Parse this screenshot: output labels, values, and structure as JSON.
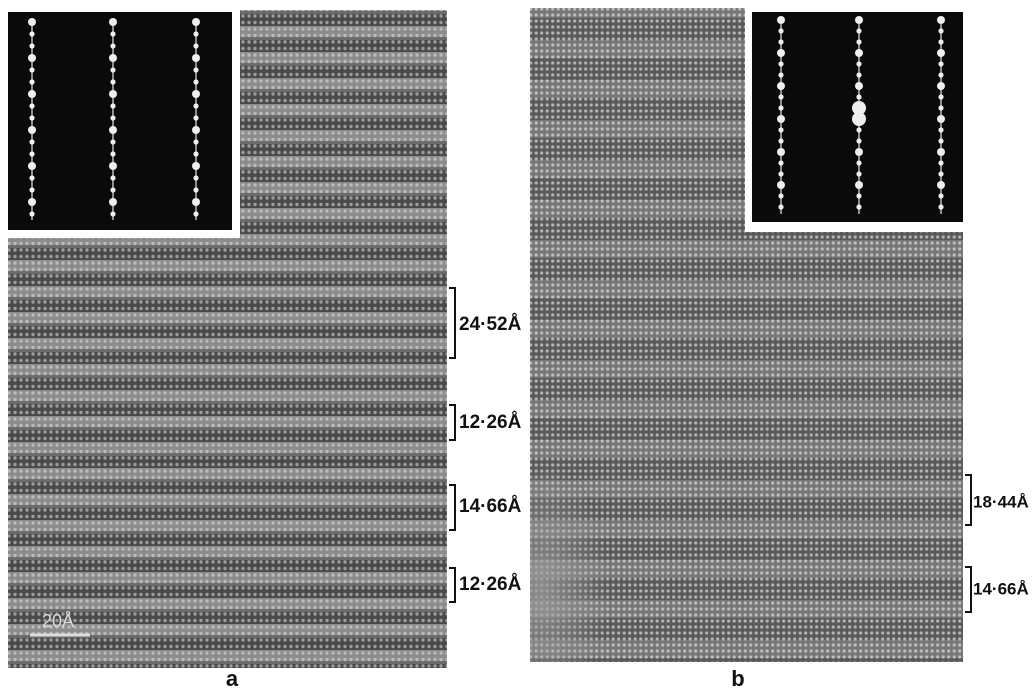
{
  "panels": [
    {
      "label": "a",
      "scale_bar": "20Å",
      "spacings": [
        "24·52Å",
        "12·26Å",
        "14·66Å",
        "12·26Å"
      ]
    },
    {
      "label": "b",
      "spacings": [
        "18·44Å",
        "14·66Å"
      ]
    }
  ]
}
